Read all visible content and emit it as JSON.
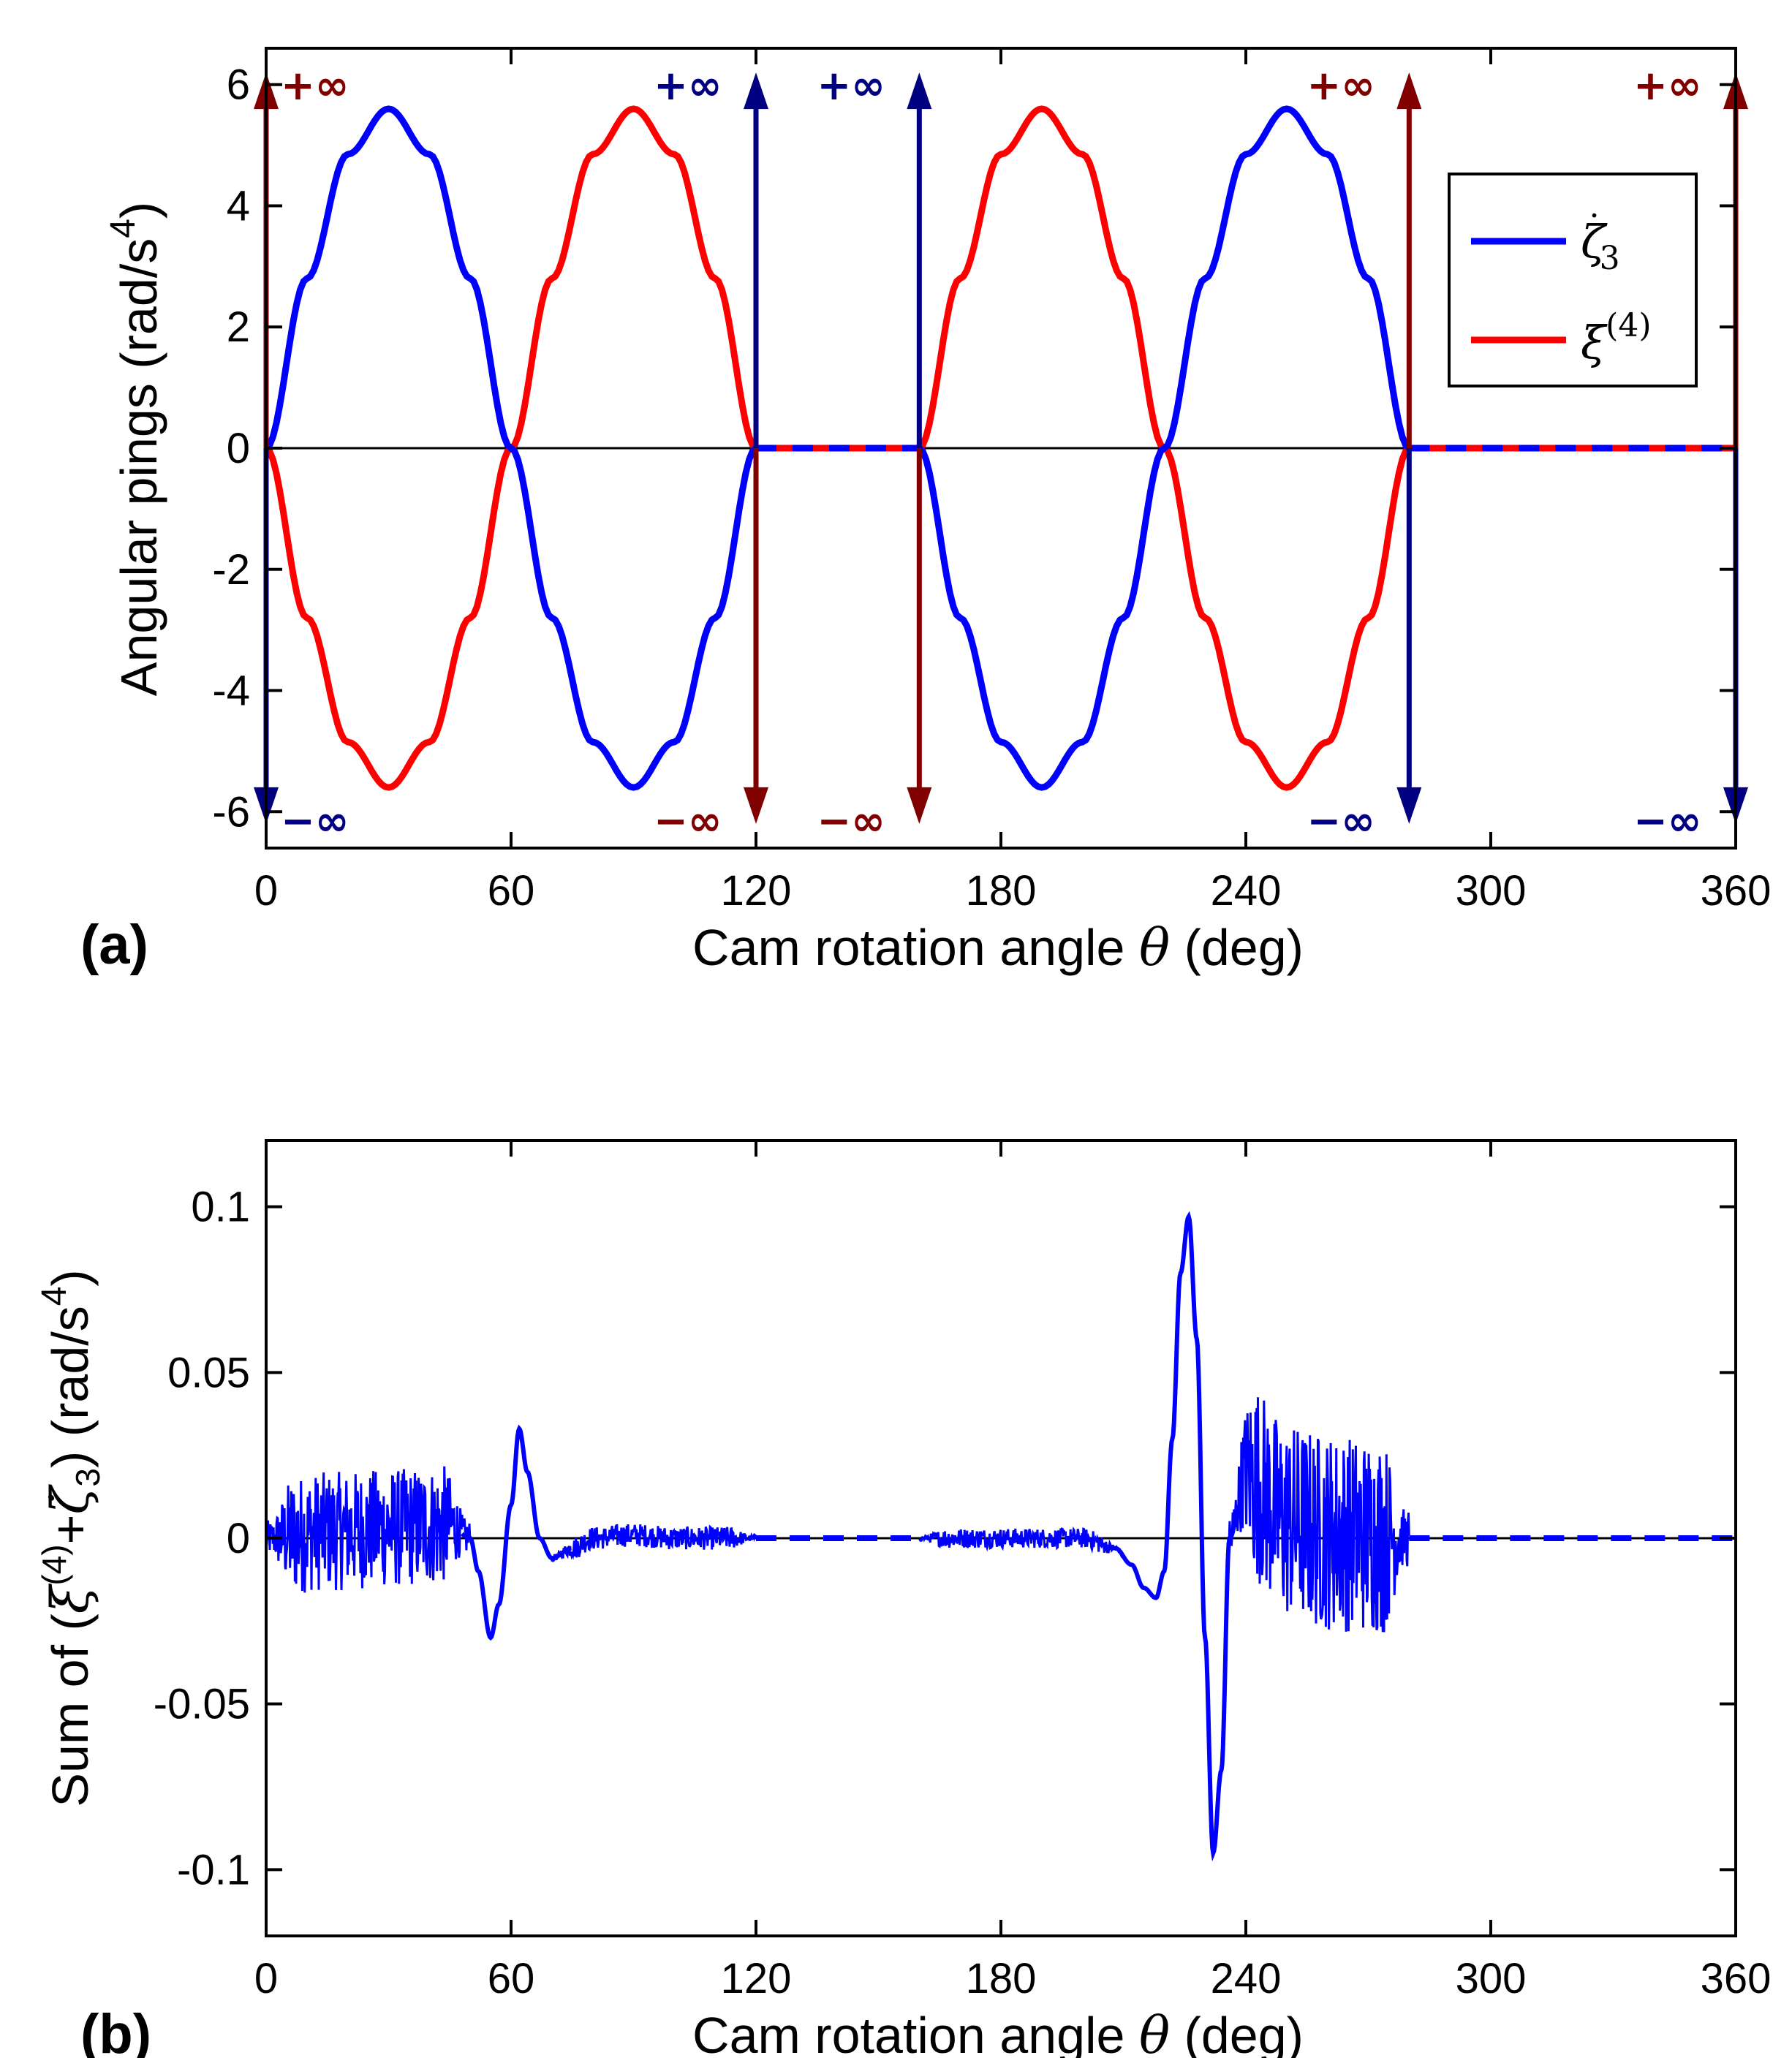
{
  "colors": {
    "zeta": "#0000ff",
    "xi": "#ff0000",
    "dark_red": "#800000",
    "dark_blue": "#000080",
    "axis": "#000000"
  },
  "chart_data": [
    {
      "panel": "(a)",
      "type": "line",
      "xlabel": "Cam rotation angle θ (deg)",
      "ylabel": "Angular pings (rad/s⁴)",
      "xlim": [
        0,
        360
      ],
      "ylim": [
        -6.6,
        6.6
      ],
      "xticks": [
        0,
        60,
        120,
        180,
        240,
        300,
        360
      ],
      "yticks": [
        -6,
        -4,
        -2,
        0,
        2,
        4,
        6
      ],
      "grid": false,
      "legend_position": "top-right",
      "series": [
        {
          "name": "ζ̇3",
          "color": "#0000ff",
          "x": [
            0,
            10,
            20,
            30,
            40,
            50,
            60,
            70,
            80,
            90,
            100,
            110,
            120,
            160,
            170,
            180,
            190,
            200,
            210,
            220,
            230,
            240,
            250,
            260,
            270,
            280,
            360
          ],
          "y": [
            0,
            2.8,
            4.85,
            5.6,
            4.85,
            2.8,
            0,
            -2.8,
            -4.85,
            -5.6,
            -4.85,
            -2.8,
            0,
            0,
            -2.8,
            -4.85,
            -5.6,
            -4.85,
            -2.8,
            0,
            2.8,
            4.85,
            5.6,
            4.85,
            2.8,
            0,
            0
          ],
          "dashed_after_x": [
            [
              120,
              160
            ],
            [
              280,
              360
            ]
          ]
        },
        {
          "name": "ξ(4)",
          "color": "#ff0000",
          "x": [
            0,
            10,
            20,
            30,
            40,
            50,
            60,
            70,
            80,
            90,
            100,
            110,
            120,
            160,
            170,
            180,
            190,
            200,
            210,
            220,
            230,
            240,
            250,
            260,
            270,
            280,
            360
          ],
          "y": [
            0,
            -2.8,
            -4.85,
            -5.6,
            -4.85,
            -2.8,
            0,
            2.8,
            4.85,
            5.6,
            4.85,
            2.8,
            0,
            0,
            2.8,
            4.85,
            5.6,
            4.85,
            2.8,
            0,
            -2.8,
            -4.85,
            -5.6,
            -4.85,
            -2.8,
            0,
            0
          ]
        }
      ],
      "impulses": [
        {
          "x": 0,
          "up_label": "+∞",
          "up_color": "#800000",
          "down_label": "−∞",
          "down_color": "#000080"
        },
        {
          "x": 120,
          "up_label": "+∞",
          "up_color": "#000080",
          "down_label": "−∞",
          "down_color": "#800000"
        },
        {
          "x": 160,
          "up_label": "+∞",
          "up_color": "#000080",
          "down_label": "−∞",
          "down_color": "#800000"
        },
        {
          "x": 280,
          "up_label": "+∞",
          "up_color": "#800000",
          "down_label": "−∞",
          "down_color": "#000080"
        },
        {
          "x": 360,
          "up_label": "+∞",
          "up_color": "#800000",
          "down_label": "−∞",
          "down_color": "#000080"
        }
      ]
    },
    {
      "panel": "(b)",
      "type": "line",
      "xlabel": "Cam rotation angle θ (deg)",
      "ylabel": "Sum of (ξ(4)+ζ̇3) (rad/s⁴)",
      "xlim": [
        0,
        360
      ],
      "ylim": [
        -0.12,
        0.12
      ],
      "xticks": [
        0,
        60,
        120,
        180,
        240,
        300,
        360
      ],
      "yticks": [
        -0.1,
        -0.05,
        0,
        0.05,
        0.1
      ],
      "grid": false,
      "series": [
        {
          "name": "",
          "color": "#0000ff",
          "x": [
            0,
            15,
            30,
            45,
            50,
            52,
            55,
            57,
            60,
            62,
            64,
            67,
            70,
            75,
            80,
            90,
            100,
            120,
            160,
            180,
            200,
            208,
            212,
            215,
            218,
            220,
            222,
            224,
            226,
            228,
            230,
            232,
            234,
            236,
            240,
            250,
            260,
            270,
            280,
            360
          ],
          "y": [
            0,
            0.002,
            0.003,
            0.004,
            0,
            -0.01,
            -0.03,
            -0.02,
            0.01,
            0.033,
            0.02,
            0,
            -0.006,
            -0.003,
            0,
            0.001,
            0,
            0,
            0,
            0,
            0,
            -0.003,
            -0.008,
            -0.015,
            -0.018,
            -0.01,
            0.03,
            0.08,
            0.097,
            0.06,
            -0.03,
            -0.095,
            -0.07,
            0,
            0.02,
            0.005,
            0.002,
            0.001,
            0,
            0
          ],
          "noise_bands": [
            {
              "from": 0,
              "to": 50,
              "amplitude": 0.018
            },
            {
              "from": 70,
              "to": 120,
              "amplitude": 0.0035
            },
            {
              "from": 160,
              "to": 210,
              "amplitude": 0.003
            },
            {
              "from": 236,
              "to": 280,
              "amplitude": 0.03
            }
          ],
          "dashed_after_x": [
            [
              120,
              160
            ],
            [
              280,
              360
            ]
          ]
        }
      ]
    }
  ],
  "panel_labels": {
    "a": "(a)",
    "b": "(b)"
  },
  "legend": [
    {
      "label": "ζ̇3"
    },
    {
      "label": "ξ(4)"
    }
  ]
}
